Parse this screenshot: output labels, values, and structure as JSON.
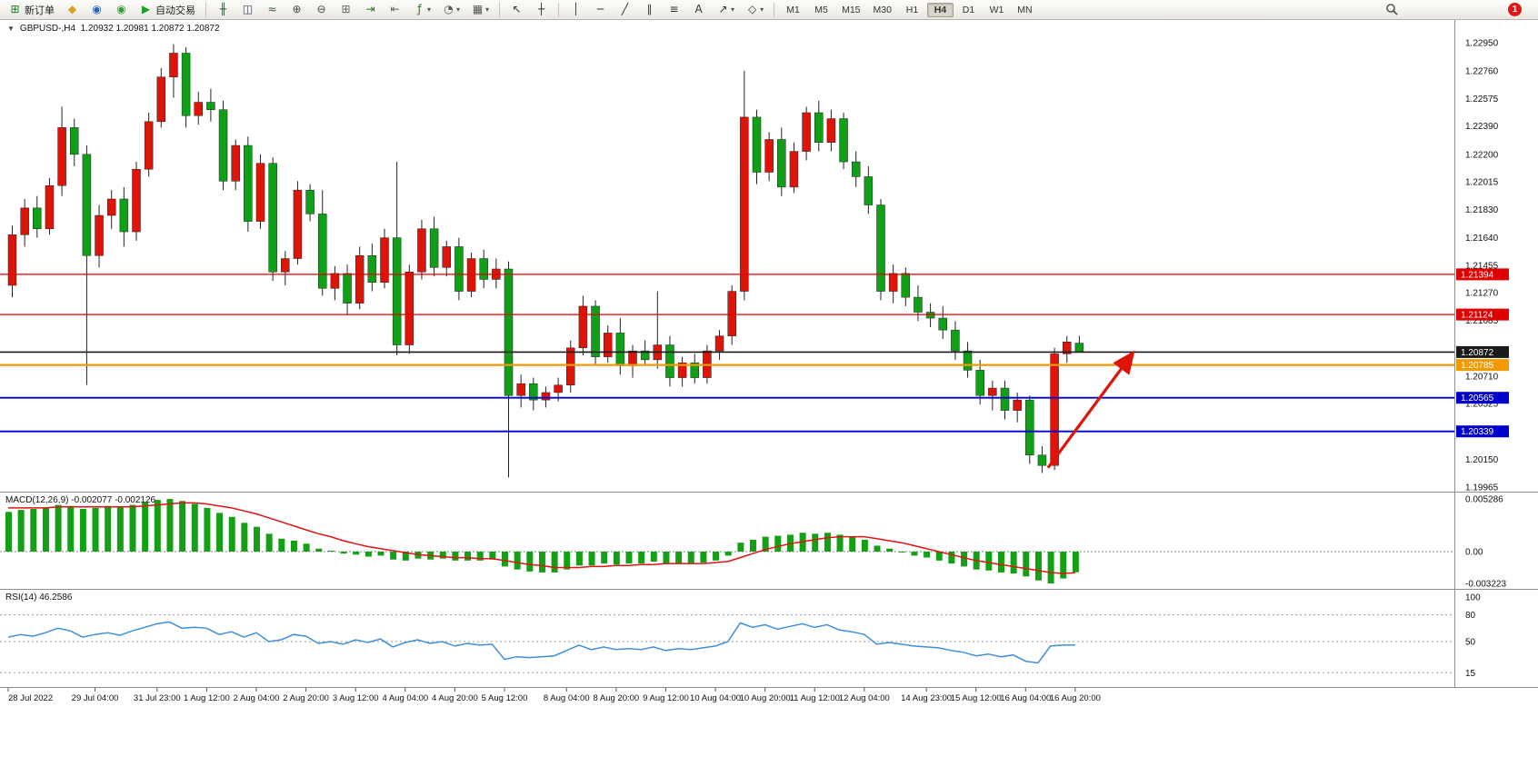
{
  "toolbar": {
    "new_order_label": "新订单",
    "auto_trading_label": "自动交易",
    "notification_count": "1",
    "dropdown_glyph": "▾",
    "one_click_arrow": "▼",
    "timeframes": [
      "M1",
      "M5",
      "M15",
      "M30",
      "H1",
      "H4",
      "D1",
      "W1",
      "MN"
    ],
    "active_timeframe": "H4",
    "icon_groups": [
      {
        "items": [
          {
            "name": "new-order-icon",
            "glyph": "⊞",
            "color": "#1c7d1f",
            "label_key": "new_order_label"
          }
        ]
      },
      {
        "items": [
          {
            "name": "charts-window-icon",
            "glyph": "◆",
            "color": "#dda018"
          },
          {
            "name": "profiles-icon",
            "glyph": "◉",
            "color": "#2a62b8"
          },
          {
            "name": "market-watch-icon",
            "glyph": "◉",
            "color": "#2d9e3a"
          }
        ]
      },
      {
        "items": [
          {
            "name": "auto-trading-icon",
            "glyph": "▶",
            "color": "#17a327",
            "label_key": "auto_trading_label"
          }
        ]
      },
      {
        "sep": true,
        "items": [
          {
            "name": "bar-chart-icon",
            "glyph": "╫",
            "color": "#3b5a3b"
          },
          {
            "name": "candlestick-chart-icon",
            "glyph": "◫",
            "color": "#3b3b5a"
          },
          {
            "name": "line-chart-icon",
            "glyph": "≈",
            "color": "#3b5a3b"
          }
        ]
      },
      {
        "items": [
          {
            "name": "zoom-in-icon",
            "glyph": "⊕",
            "color": "#444444"
          },
          {
            "name": "zoom-out-icon",
            "glyph": "⊖",
            "color": "#444444"
          }
        ]
      },
      {
        "items": [
          {
            "name": "tile-windows-icon",
            "glyph": "⊞",
            "color": "#666666"
          }
        ]
      },
      {
        "items": [
          {
            "name": "auto-scroll-icon",
            "glyph": "⇥",
            "color": "#1c7d1f"
          },
          {
            "name": "chart-shift-icon",
            "glyph": "⇤",
            "color": "#666666"
          }
        ]
      },
      {
        "items": [
          {
            "name": "indicators-icon",
            "glyph": "ƒ",
            "color": "#1c7d1f",
            "dropdown": true
          },
          {
            "name": "periods-icon",
            "glyph": "◔",
            "color": "#555555",
            "dropdown": true
          },
          {
            "name": "templates-icon",
            "glyph": "▦",
            "color": "#555555",
            "dropdown": true
          }
        ]
      },
      {
        "sep": true,
        "items": [
          {
            "name": "cursor-icon",
            "glyph": "↖",
            "color": "#333333"
          },
          {
            "name": "crosshair-icon",
            "glyph": "┼",
            "color": "#333333"
          }
        ]
      },
      {
        "sep": true,
        "items": [
          {
            "name": "vertical-line-icon",
            "glyph": "│",
            "color": "#333333"
          },
          {
            "name": "horizontal-line-icon",
            "glyph": "─",
            "color": "#333333"
          },
          {
            "name": "trendline-icon",
            "glyph": "╱",
            "color": "#333333"
          },
          {
            "name": "equidistant-channel-icon",
            "glyph": "∥",
            "color": "#333333"
          },
          {
            "name": "fibonacci-icon",
            "glyph": "≡",
            "color": "#333333"
          }
        ]
      },
      {
        "items": [
          {
            "name": "text-icon",
            "glyph": "A",
            "color": "#333333"
          },
          {
            "name": "arrow-tool-icon",
            "glyph": "↗",
            "color": "#333333",
            "dropdown": true
          },
          {
            "name": "shapes-icon",
            "glyph": "◇",
            "color": "#333333",
            "dropdown": true
          }
        ]
      }
    ]
  },
  "chart": {
    "header": "GBPUSD-,H4  1.20932 1.20981 1.20872 1.20872"
  },
  "colors": {
    "bull_candle": "#df1408",
    "bear_candle": "#0fa018",
    "wick": "#222222",
    "macd_histogram": "#14a014",
    "macd_signal": "#e01414",
    "rsi_line": "#3f8fdc",
    "arrow": "#df1408"
  },
  "chart_data": {
    "type": "candlestick",
    "symbol": "GBPUSD-",
    "timeframe": "H4",
    "price_axis_ticks": [
      "1.22950",
      "1.22760",
      "1.22575",
      "1.22390",
      "1.22200",
      "1.22015",
      "1.21830",
      "1.21640",
      "1.21455",
      "1.21270",
      "1.21085",
      "1.20710",
      "1.20525",
      "1.20150",
      "1.19965"
    ],
    "hlines": [
      {
        "price": 1.21394,
        "label": "1.21394",
        "color": "#e00000",
        "width": 1.2
      },
      {
        "price": 1.21124,
        "label": "1.21124",
        "color": "#e00000",
        "width": 1.2
      },
      {
        "price": 1.20872,
        "label": "1.20872",
        "color": "#1a1a1a",
        "width": 1.6
      },
      {
        "price": 1.20785,
        "label": "1.20785",
        "color": "#f09a00",
        "width": 2.2
      },
      {
        "price": 1.20565,
        "label": "1.20565",
        "color": "#0000cc",
        "width": 1.8
      },
      {
        "price": 1.20339,
        "label": "1.20339",
        "color": "#0000cc",
        "width": 1.8
      }
    ],
    "arrow_annotation": {
      "from_index": 83.8,
      "from_price": 1.20095,
      "to_index": 90.6,
      "to_price": 1.2086,
      "color": "#df1408"
    },
    "candles": [
      [
        1.2132,
        1.2172,
        1.2124,
        1.2166
      ],
      [
        1.2166,
        1.219,
        1.2158,
        1.2184
      ],
      [
        1.2184,
        1.2192,
        1.2164,
        1.217
      ],
      [
        1.217,
        1.2204,
        1.2166,
        1.2199
      ],
      [
        1.2199,
        1.2252,
        1.2192,
        1.2238
      ],
      [
        1.2238,
        1.2244,
        1.2212,
        1.222
      ],
      [
        1.222,
        1.2226,
        1.2065,
        1.2152
      ],
      [
        1.2152,
        1.2186,
        1.2144,
        1.2179
      ],
      [
        1.2179,
        1.2196,
        1.217,
        1.219
      ],
      [
        1.219,
        1.2198,
        1.2158,
        1.2168
      ],
      [
        1.2168,
        1.2215,
        1.2162,
        1.221
      ],
      [
        1.221,
        1.2248,
        1.2205,
        1.2242
      ],
      [
        1.2242,
        1.2278,
        1.2238,
        1.2272
      ],
      [
        1.2272,
        1.2294,
        1.2258,
        1.2288
      ],
      [
        1.2288,
        1.2292,
        1.2238,
        1.2246
      ],
      [
        1.2246,
        1.2262,
        1.224,
        1.2255
      ],
      [
        1.2255,
        1.2264,
        1.2242,
        1.225
      ],
      [
        1.225,
        1.2256,
        1.2196,
        1.2202
      ],
      [
        1.2202,
        1.223,
        1.2196,
        1.2226
      ],
      [
        1.2226,
        1.2232,
        1.2168,
        1.2175
      ],
      [
        1.2175,
        1.222,
        1.217,
        1.2214
      ],
      [
        1.2214,
        1.2218,
        1.2135,
        1.2141
      ],
      [
        1.2141,
        1.2155,
        1.2132,
        1.215
      ],
      [
        1.215,
        1.2202,
        1.2146,
        1.2196
      ],
      [
        1.2196,
        1.22,
        1.2175,
        1.218
      ],
      [
        1.218,
        1.2196,
        1.2125,
        1.213
      ],
      [
        1.213,
        1.2145,
        1.2122,
        1.214
      ],
      [
        1.214,
        1.2146,
        1.2112,
        1.212
      ],
      [
        1.212,
        1.2158,
        1.2116,
        1.2152
      ],
      [
        1.2152,
        1.216,
        1.2128,
        1.2134
      ],
      [
        1.2134,
        1.217,
        1.213,
        1.2164
      ],
      [
        1.2164,
        1.2215,
        1.2085,
        1.2092
      ],
      [
        1.2092,
        1.2146,
        1.2086,
        1.2141
      ],
      [
        1.2141,
        1.2176,
        1.2136,
        1.217
      ],
      [
        1.217,
        1.2178,
        1.2138,
        1.2144
      ],
      [
        1.2144,
        1.2162,
        1.2138,
        1.2158
      ],
      [
        1.2158,
        1.2164,
        1.2122,
        1.2128
      ],
      [
        1.2128,
        1.2154,
        1.2124,
        1.215
      ],
      [
        1.215,
        1.2156,
        1.213,
        1.2136
      ],
      [
        1.2136,
        1.215,
        1.213,
        1.2143
      ],
      [
        1.2143,
        1.2148,
        1.2003,
        1.2058
      ],
      [
        1.2058,
        1.2072,
        1.205,
        1.2066
      ],
      [
        1.2066,
        1.207,
        1.2048,
        1.2055
      ],
      [
        1.2055,
        1.2064,
        1.205,
        1.206
      ],
      [
        1.206,
        1.207,
        1.2054,
        1.2065
      ],
      [
        1.2065,
        1.2095,
        1.206,
        1.209
      ],
      [
        1.209,
        1.2125,
        1.2085,
        1.2118
      ],
      [
        1.2118,
        1.2122,
        1.2078,
        1.2084
      ],
      [
        1.2084,
        1.2105,
        1.208,
        1.21
      ],
      [
        1.21,
        1.211,
        1.2072,
        1.2078
      ],
      [
        1.2078,
        1.2092,
        1.207,
        1.2088
      ],
      [
        1.2088,
        1.2095,
        1.2078,
        1.2082
      ],
      [
        1.2082,
        1.2128,
        1.2076,
        1.2092
      ],
      [
        1.2092,
        1.2098,
        1.2064,
        1.207
      ],
      [
        1.207,
        1.2084,
        1.2064,
        1.208
      ],
      [
        1.208,
        1.2086,
        1.2066,
        1.207
      ],
      [
        1.207,
        1.2092,
        1.2066,
        1.2088
      ],
      [
        1.2088,
        1.2102,
        1.2082,
        1.2098
      ],
      [
        1.2098,
        1.2132,
        1.2092,
        1.2128
      ],
      [
        1.2128,
        1.2276,
        1.2122,
        1.2245
      ],
      [
        1.2245,
        1.225,
        1.22,
        1.2208
      ],
      [
        1.2208,
        1.2235,
        1.2202,
        1.223
      ],
      [
        1.223,
        1.2238,
        1.2192,
        1.2198
      ],
      [
        1.2198,
        1.2228,
        1.2194,
        1.2222
      ],
      [
        1.2222,
        1.2252,
        1.2216,
        1.2248
      ],
      [
        1.2248,
        1.2256,
        1.2222,
        1.2228
      ],
      [
        1.2228,
        1.225,
        1.2222,
        1.2244
      ],
      [
        1.2244,
        1.2248,
        1.221,
        1.2215
      ],
      [
        1.2215,
        1.2222,
        1.2198,
        1.2205
      ],
      [
        1.2205,
        1.2212,
        1.218,
        1.2186
      ],
      [
        1.2186,
        1.219,
        1.2122,
        1.2128
      ],
      [
        1.2128,
        1.2146,
        1.212,
        1.214
      ],
      [
        1.214,
        1.2144,
        1.2118,
        1.2124
      ],
      [
        1.2124,
        1.2132,
        1.2108,
        1.2114
      ],
      [
        1.2114,
        1.212,
        1.2104,
        1.211
      ],
      [
        1.211,
        1.2118,
        1.2096,
        1.2102
      ],
      [
        1.2102,
        1.2108,
        1.2082,
        1.2088
      ],
      [
        1.2088,
        1.2094,
        1.207,
        1.2075
      ],
      [
        1.2075,
        1.2082,
        1.2052,
        1.2058
      ],
      [
        1.2058,
        1.2068,
        1.2048,
        1.2063
      ],
      [
        1.2063,
        1.2068,
        1.2042,
        1.2048
      ],
      [
        1.2048,
        1.206,
        1.204,
        1.2055
      ],
      [
        1.2055,
        1.2058,
        1.2012,
        1.2018
      ],
      [
        1.2018,
        1.2024,
        1.2006,
        1.2011
      ],
      [
        1.2011,
        1.209,
        1.2008,
        1.2086
      ],
      [
        1.2086,
        1.2098,
        1.208,
        1.2094
      ],
      [
        1.20932,
        1.20981,
        1.20872,
        1.20872
      ]
    ],
    "time_labels": [
      {
        "i": 0,
        "text": "28 Jul 2022"
      },
      {
        "i": 7,
        "text": "29 Jul 04:00"
      },
      {
        "i": 12,
        "text": "31 Jul 23:00"
      },
      {
        "i": 16,
        "text": "1 Aug 12:00"
      },
      {
        "i": 20,
        "text": "2 Aug 04:00"
      },
      {
        "i": 24,
        "text": "2 Aug 20:00"
      },
      {
        "i": 28,
        "text": "3 Aug 12:00"
      },
      {
        "i": 32,
        "text": "4 Aug 04:00"
      },
      {
        "i": 36,
        "text": "4 Aug 20:00"
      },
      {
        "i": 40,
        "text": "5 Aug 12:00"
      },
      {
        "i": 45,
        "text": "8 Aug 04:00"
      },
      {
        "i": 49,
        "text": "8 Aug 20:00"
      },
      {
        "i": 53,
        "text": "9 Aug 12:00"
      },
      {
        "i": 57,
        "text": "10 Aug 04:00"
      },
      {
        "i": 61,
        "text": "10 Aug 20:00"
      },
      {
        "i": 65,
        "text": "11 Aug 12:00"
      },
      {
        "i": 69,
        "text": "12 Aug 04:00"
      },
      {
        "i": 74,
        "text": "14 Aug 23:00"
      },
      {
        "i": 78,
        "text": "15 Aug 12:00"
      },
      {
        "i": 82,
        "text": "16 Aug 04:00"
      },
      {
        "i": 86,
        "text": "16 Aug 20:00"
      }
    ],
    "macd": {
      "label_text": "MACD(12,26,9) -0.002077 -0.002126",
      "axis_ticks": [
        {
          "value": 0.005286,
          "label": "0.005286"
        },
        {
          "value": 0.0,
          "label": "0.00"
        },
        {
          "value": -0.003223,
          "label": "-0.003223"
        }
      ],
      "histogram": [
        0.004,
        0.0042,
        0.0043,
        0.0044,
        0.0047,
        0.0046,
        0.0043,
        0.0044,
        0.0046,
        0.0045,
        0.0047,
        0.005,
        0.0052,
        0.0053,
        0.0051,
        0.0048,
        0.0044,
        0.0039,
        0.0035,
        0.0029,
        0.0025,
        0.0018,
        0.0013,
        0.0011,
        0.0008,
        0.0003,
        0.0001,
        -0.0002,
        -0.0003,
        -0.0005,
        -0.0004,
        -0.0008,
        -0.0009,
        -0.0007,
        -0.0008,
        -0.0007,
        -0.0009,
        -0.0009,
        -0.0009,
        -0.0008,
        -0.0015,
        -0.0018,
        -0.002,
        -0.0021,
        -0.0021,
        -0.0018,
        -0.0014,
        -0.0014,
        -0.0012,
        -0.0013,
        -0.0012,
        -0.0012,
        -0.001,
        -0.0012,
        -0.0012,
        -0.0012,
        -0.0011,
        -0.0009,
        -0.0004,
        0.0009,
        0.0012,
        0.0015,
        0.0016,
        0.0017,
        0.0019,
        0.0018,
        0.0019,
        0.0017,
        0.0015,
        0.0012,
        0.0006,
        0.0003,
        0.0,
        -0.0004,
        -0.0006,
        -0.0009,
        -0.0012,
        -0.0015,
        -0.0018,
        -0.0019,
        -0.0021,
        -0.0022,
        -0.0025,
        -0.0029,
        -0.0032,
        -0.0027,
        -0.002077
      ],
      "signal": [
        0.0044,
        0.0044,
        0.0044,
        0.0044,
        0.0045,
        0.0045,
        0.0045,
        0.0045,
        0.0045,
        0.0045,
        0.0045,
        0.0046,
        0.0047,
        0.0048,
        0.0049,
        0.0049,
        0.0048,
        0.0046,
        0.0044,
        0.0041,
        0.0038,
        0.0034,
        0.003,
        0.0026,
        0.0022,
        0.0018,
        0.0015,
        0.0011,
        0.0008,
        0.0005,
        0.0003,
        0.0001,
        -0.0001,
        -0.0003,
        -0.0004,
        -0.0005,
        -0.0006,
        -0.0006,
        -0.0007,
        -0.0007,
        -0.0009,
        -0.0011,
        -0.0013,
        -0.0014,
        -0.0016,
        -0.0016,
        -0.0016,
        -0.0015,
        -0.0015,
        -0.0014,
        -0.0014,
        -0.0013,
        -0.0013,
        -0.0012,
        -0.0012,
        -0.0012,
        -0.0012,
        -0.0011,
        -0.001,
        -0.0006,
        -0.0002,
        0.0002,
        0.0005,
        0.0008,
        0.001,
        0.0012,
        0.0014,
        0.0015,
        0.0015,
        0.0015,
        0.0013,
        0.0011,
        0.0009,
        0.0006,
        0.0003,
        0.0,
        -0.0003,
        -0.0006,
        -0.0009,
        -0.0011,
        -0.0013,
        -0.0015,
        -0.0017,
        -0.0019,
        -0.0021,
        -0.0022,
        -0.002126
      ]
    },
    "rsi": {
      "label_text": "RSI(14) 46.2586",
      "axis_ticks": [
        "100",
        "80",
        "50",
        "15"
      ],
      "levels": [
        80,
        50,
        15
      ],
      "values": [
        55,
        58,
        56,
        60,
        65,
        62,
        55,
        58,
        60,
        57,
        62,
        66,
        70,
        72,
        65,
        66,
        65,
        58,
        61,
        55,
        60,
        50,
        52,
        58,
        56,
        48,
        50,
        47,
        52,
        49,
        53,
        44,
        49,
        52,
        48,
        50,
        45,
        48,
        46,
        47,
        30,
        33,
        32,
        33,
        34,
        40,
        46,
        41,
        44,
        41,
        42,
        41,
        44,
        40,
        42,
        41,
        43,
        45,
        50,
        71,
        66,
        69,
        64,
        67,
        70,
        66,
        69,
        63,
        61,
        58,
        47,
        49,
        47,
        45,
        44,
        43,
        40,
        38,
        34,
        36,
        33,
        35,
        28,
        26,
        45,
        46,
        46.26
      ]
    }
  }
}
